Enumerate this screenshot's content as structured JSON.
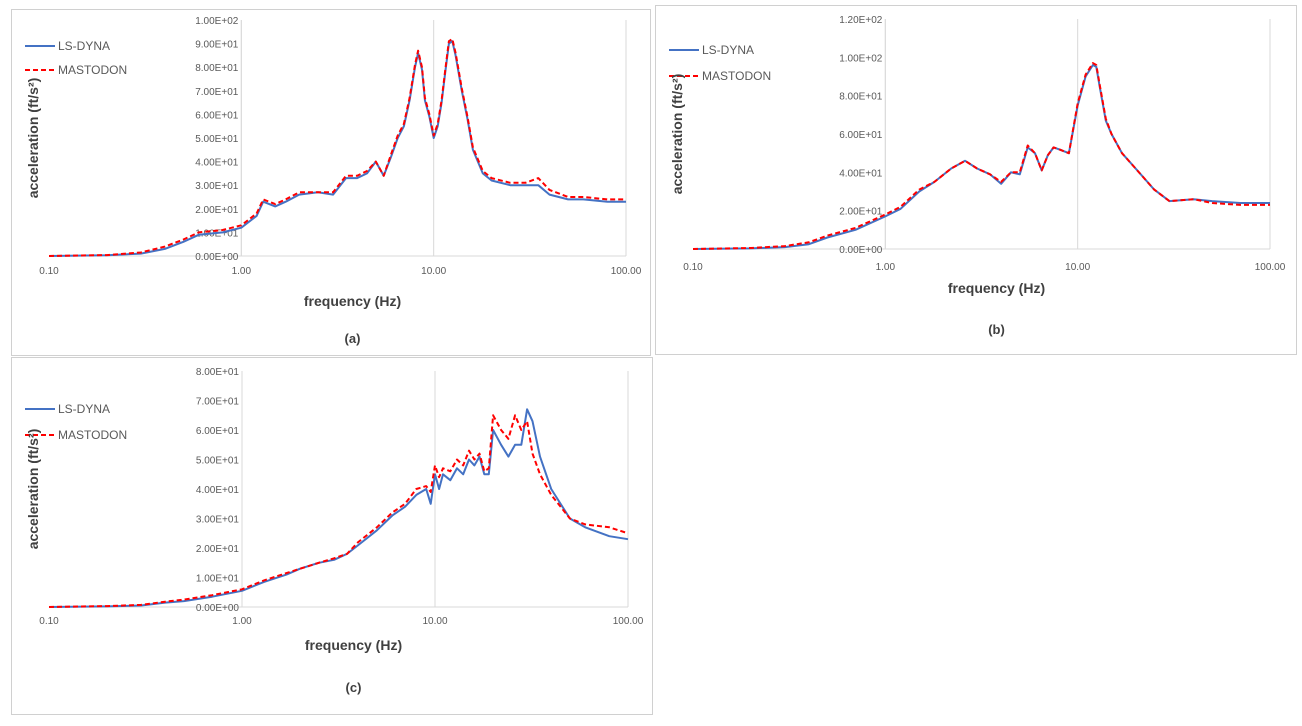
{
  "colors": {
    "ls_dyna": "#4472C4",
    "mastodon": "#FF0000",
    "grid": "#d9d9d9"
  },
  "chart_data": [
    {
      "type": "line",
      "caption": "(a)",
      "xlabel": "frequency (Hz)",
      "ylabel": "acceleration (ft/s²)",
      "x_scale": "log",
      "xlim": [
        0.1,
        100
      ],
      "ylim": [
        0,
        100
      ],
      "x_ticks": [
        "0.10",
        "1.00",
        "10.00",
        "100.00"
      ],
      "y_ticks": [
        "0.00E+00",
        "1.00E+01",
        "2.00E+01",
        "3.00E+01",
        "4.00E+01",
        "5.00E+01",
        "6.00E+01",
        "7.00E+01",
        "8.00E+01",
        "9.00E+01",
        "1.00E+02"
      ],
      "legend": [
        "LS-DYNA",
        "MASTODON"
      ],
      "legend_position": "top-left",
      "grid": "vertical",
      "series": [
        {
          "name": "LS-DYNA",
          "x": [
            0.1,
            0.2,
            0.3,
            0.4,
            0.5,
            0.6,
            0.8,
            1.0,
            1.2,
            1.3,
            1.5,
            1.7,
            2.0,
            2.5,
            3.0,
            3.5,
            4.0,
            4.5,
            5.0,
            5.5,
            6.0,
            6.5,
            7.0,
            7.5,
            8.0,
            8.3,
            8.7,
            9.0,
            9.5,
            10.0,
            10.5,
            11.0,
            11.5,
            12.0,
            12.5,
            13.0,
            14.0,
            15.0,
            16.0,
            18.0,
            20.0,
            25.0,
            30.0,
            35.0,
            40.0,
            50.0,
            60.0,
            80.0,
            100.0
          ],
          "y": [
            0,
            0.3,
            1,
            3,
            6,
            9,
            10,
            12,
            17,
            23,
            21,
            23,
            26,
            27,
            26,
            33,
            33,
            35,
            40,
            34,
            42,
            50,
            55,
            66,
            80,
            86,
            79,
            66,
            59,
            50,
            55,
            65,
            78,
            90,
            91,
            85,
            70,
            58,
            45,
            35,
            32,
            30,
            30,
            30,
            26,
            24,
            24,
            23,
            23
          ]
        },
        {
          "name": "MASTODON",
          "x": [
            0.1,
            0.2,
            0.3,
            0.4,
            0.5,
            0.6,
            0.8,
            1.0,
            1.2,
            1.3,
            1.5,
            1.7,
            2.0,
            2.5,
            3.0,
            3.5,
            4.0,
            4.5,
            5.0,
            5.5,
            6.0,
            6.5,
            7.0,
            7.5,
            8.0,
            8.3,
            8.7,
            9.0,
            9.5,
            10.0,
            10.5,
            11.0,
            11.5,
            12.0,
            12.5,
            13.0,
            14.0,
            15.0,
            16.0,
            18.0,
            20.0,
            25.0,
            30.0,
            35.0,
            40.0,
            50.0,
            60.0,
            80.0,
            100.0
          ],
          "y": [
            0,
            0.4,
            1.5,
            4,
            7,
            10,
            11,
            13,
            18,
            24,
            22,
            24,
            27,
            27,
            27,
            34,
            34,
            36,
            40,
            34,
            43,
            51,
            56,
            67,
            81,
            87,
            80,
            67,
            60,
            51,
            56,
            66,
            79,
            91,
            92,
            86,
            71,
            59,
            46,
            36,
            33,
            31,
            31,
            33,
            28,
            25,
            25,
            24,
            24
          ]
        }
      ]
    },
    {
      "type": "line",
      "caption": "(b)",
      "xlabel": "frequency (Hz)",
      "ylabel": "acceleration (ft/s²)",
      "x_scale": "log",
      "xlim": [
        0.1,
        100
      ],
      "ylim": [
        0,
        120
      ],
      "x_ticks": [
        "0.10",
        "1.00",
        "10.00",
        "100.00"
      ],
      "y_ticks": [
        "0.00E+00",
        "2.00E+01",
        "4.00E+01",
        "6.00E+01",
        "8.00E+01",
        "1.00E+02",
        "1.20E+02"
      ],
      "legend": [
        "LS-DYNA",
        "MASTODON"
      ],
      "legend_position": "top-left",
      "grid": "vertical",
      "series": [
        {
          "name": "LS-DYNA",
          "x": [
            0.1,
            0.2,
            0.3,
            0.4,
            0.5,
            0.7,
            1.0,
            1.2,
            1.5,
            1.8,
            2.2,
            2.6,
            3.0,
            3.5,
            4.0,
            4.5,
            5.0,
            5.5,
            6.0,
            6.5,
            7.0,
            7.5,
            8.0,
            9.0,
            10.0,
            11.0,
            12.0,
            12.5,
            13.0,
            14.0,
            15.0,
            17.0,
            20.0,
            25.0,
            30.0,
            40.0,
            50.0,
            70.0,
            100.0
          ],
          "y": [
            0,
            0.3,
            1,
            2.5,
            6,
            10,
            17,
            21,
            30,
            35,
            42,
            46,
            42,
            39,
            34,
            40,
            39,
            53,
            50,
            41,
            49,
            53,
            52,
            50,
            75,
            90,
            96,
            95,
            85,
            67,
            60,
            50,
            42,
            31,
            25,
            26,
            25,
            24,
            24
          ]
        },
        {
          "name": "MASTODON",
          "x": [
            0.1,
            0.2,
            0.3,
            0.4,
            0.5,
            0.7,
            1.0,
            1.2,
            1.5,
            1.8,
            2.2,
            2.6,
            3.0,
            3.5,
            4.0,
            4.5,
            5.0,
            5.5,
            6.0,
            6.5,
            7.0,
            7.5,
            8.0,
            9.0,
            10.0,
            11.0,
            12.0,
            12.5,
            13.0,
            14.0,
            15.0,
            17.0,
            20.0,
            25.0,
            30.0,
            40.0,
            50.0,
            70.0,
            100.0
          ],
          "y": [
            0,
            0.5,
            1.5,
            3.5,
            7,
            11,
            18,
            22,
            31,
            35,
            42,
            46,
            42,
            39,
            35,
            40,
            40,
            54,
            50,
            41,
            49,
            53,
            52,
            50,
            76,
            91,
            97,
            96,
            86,
            68,
            60,
            50,
            42,
            31,
            25,
            26,
            24,
            23,
            23
          ]
        }
      ]
    },
    {
      "type": "line",
      "caption": "(c)",
      "xlabel": "frequency (Hz)",
      "ylabel": "acceleration (ft/s²)",
      "x_scale": "log",
      "xlim": [
        0.1,
        100
      ],
      "ylim": [
        0,
        80
      ],
      "x_ticks": [
        "0.10",
        "1.00",
        "10.00",
        "100.00"
      ],
      "y_ticks": [
        "0.00E+00",
        "1.00E+01",
        "2.00E+01",
        "3.00E+01",
        "4.00E+01",
        "5.00E+01",
        "6.00E+01",
        "7.00E+01",
        "8.00E+01"
      ],
      "legend": [
        "LS-DYNA",
        "MASTODON"
      ],
      "legend_position": "top-left",
      "grid": "vertical",
      "series": [
        {
          "name": "LS-DYNA",
          "x": [
            0.1,
            0.2,
            0.3,
            0.4,
            0.5,
            0.7,
            1.0,
            1.3,
            1.7,
            2.0,
            2.5,
            3.0,
            3.5,
            4.0,
            5.0,
            6.0,
            7.0,
            8.0,
            9.0,
            9.5,
            10.0,
            10.5,
            11.0,
            12.0,
            13.0,
            14.0,
            15.0,
            16.0,
            17.0,
            18.0,
            19.0,
            20.0,
            22.0,
            24.0,
            26.0,
            28.0,
            30.0,
            32.0,
            35.0,
            40.0,
            50.0,
            60.0,
            80.0,
            100.0
          ],
          "y": [
            0,
            0.2,
            0.5,
            1.5,
            2,
            3.5,
            5.5,
            8.5,
            11,
            13,
            15,
            16,
            18,
            21,
            26,
            31,
            34,
            38,
            40,
            35,
            45,
            40,
            45,
            43,
            47,
            45,
            50,
            48,
            51,
            45,
            45,
            60,
            55,
            51,
            55,
            55,
            67,
            63,
            51,
            40,
            30,
            27,
            24,
            23
          ]
        },
        {
          "name": "MASTODON",
          "x": [
            0.1,
            0.2,
            0.3,
            0.4,
            0.5,
            0.7,
            1.0,
            1.3,
            1.7,
            2.0,
            2.5,
            3.0,
            3.5,
            4.0,
            5.0,
            6.0,
            7.0,
            8.0,
            9.0,
            9.5,
            10.0,
            10.5,
            11.0,
            12.0,
            13.0,
            14.0,
            15.0,
            16.0,
            17.0,
            18.0,
            19.0,
            20.0,
            22.0,
            24.0,
            26.0,
            28.0,
            30.0,
            32.0,
            35.0,
            40.0,
            50.0,
            60.0,
            80.0,
            100.0
          ],
          "y": [
            0,
            0.3,
            0.7,
            1.8,
            2.5,
            4,
            6,
            9,
            11.5,
            13,
            15,
            16.5,
            18,
            22,
            27,
            32,
            35,
            40,
            41,
            39,
            48,
            44,
            47,
            46,
            50,
            48,
            53,
            50,
            52,
            46,
            47,
            65,
            60,
            57,
            65,
            60,
            63,
            52,
            45,
            38,
            30,
            28,
            27,
            25
          ]
        }
      ]
    }
  ]
}
